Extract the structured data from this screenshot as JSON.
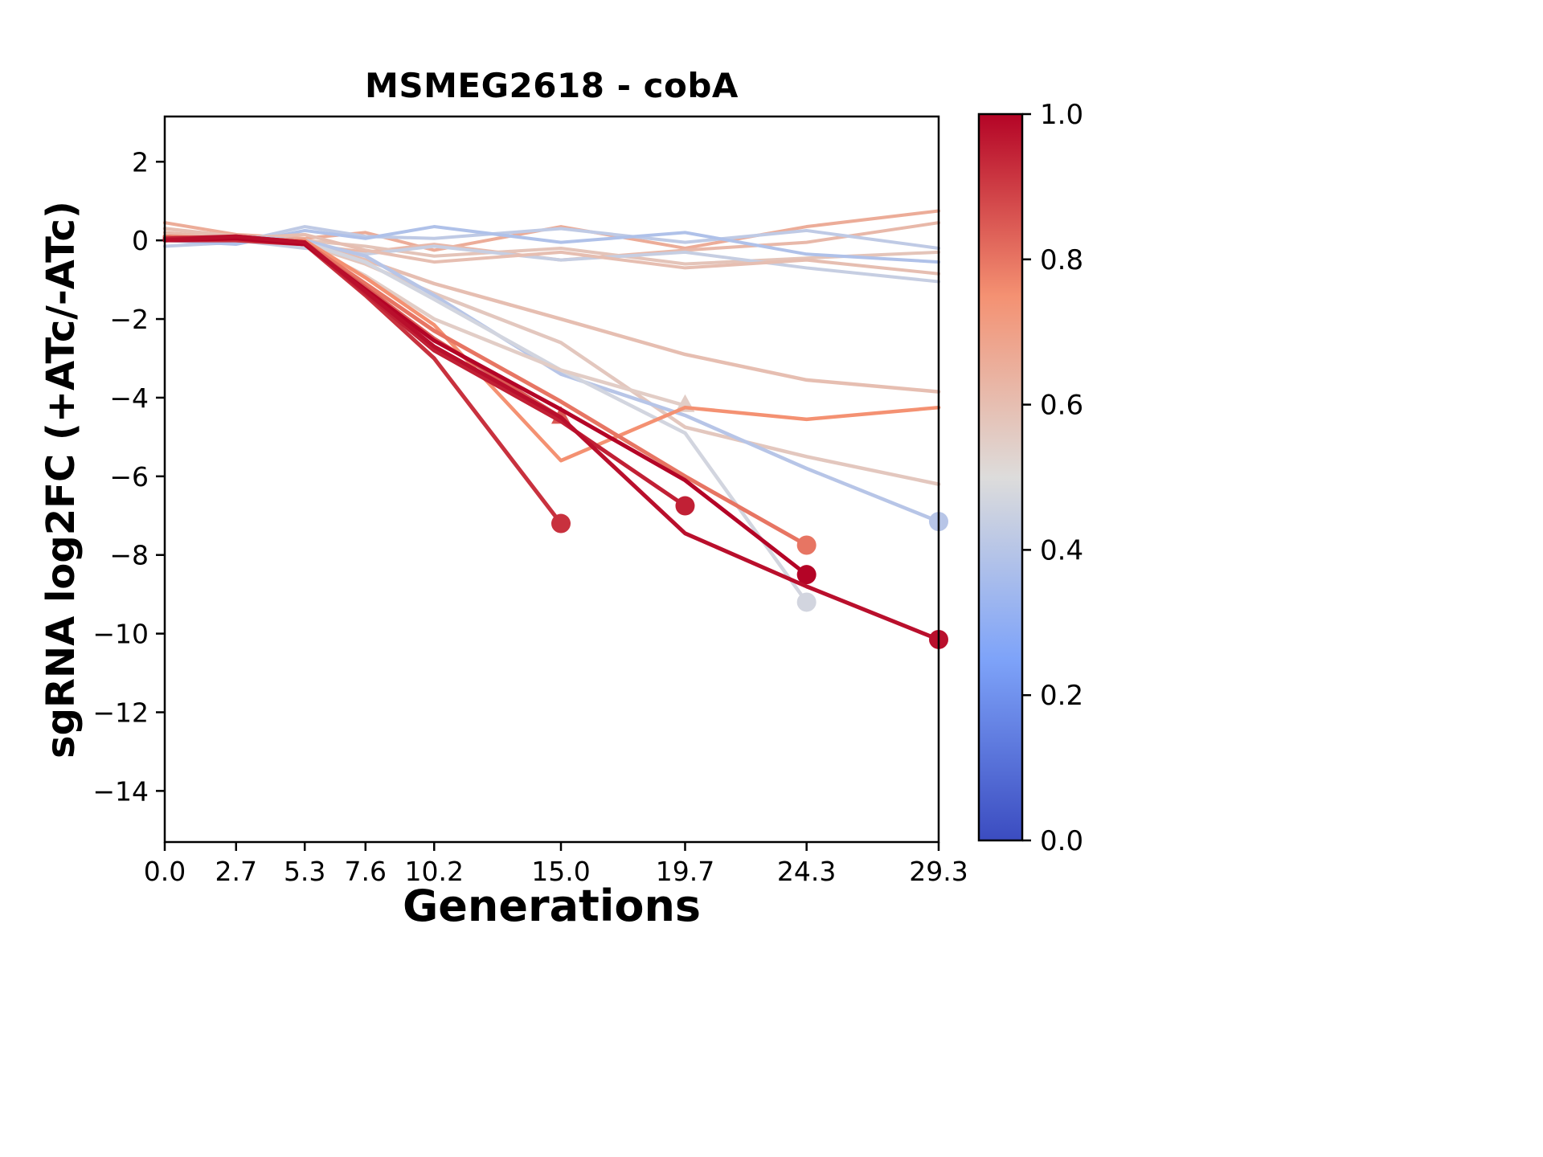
{
  "chart_data": {
    "type": "line",
    "title": "MSMEG2618 - cobA",
    "xlabel": "Generations",
    "ylabel": "sgRNA log2FC (+ATc/-ATc)",
    "x": [
      0.0,
      2.7,
      5.3,
      7.6,
      10.2,
      15.0,
      19.7,
      24.3,
      29.3
    ],
    "xtick_labels": [
      "0.0",
      "2.7",
      "5.3",
      "7.6",
      "10.2",
      "15.0",
      "19.7",
      "24.3",
      "29.3"
    ],
    "ytick_values": [
      2,
      0,
      -2,
      -4,
      -6,
      -8,
      -10,
      -12,
      -14
    ],
    "ytick_labels": [
      "2",
      "0",
      "−2",
      "−4",
      "−6",
      "−8",
      "−10",
      "−12",
      "−14"
    ],
    "xlim": [
      0,
      29.3
    ],
    "ylim": [
      -15.3,
      3.15
    ],
    "grid": false,
    "legend": "none",
    "colormap": {
      "name": "coolwarm",
      "stops": [
        {
          "t": 0.0,
          "rgb": [
            59,
            76,
            192
          ]
        },
        {
          "t": 0.25,
          "rgb": [
            126,
            163,
            249
          ]
        },
        {
          "t": 0.5,
          "rgb": [
            221,
            220,
            219
          ]
        },
        {
          "t": 0.75,
          "rgb": [
            244,
            145,
            114
          ]
        },
        {
          "t": 1.0,
          "rgb": [
            180,
            4,
            38
          ]
        }
      ]
    },
    "colorbar": {
      "range": [
        0.0,
        1.0
      ],
      "tick_values": [
        1.0,
        0.8,
        0.6,
        0.4,
        0.2,
        0.0
      ],
      "tick_labels": [
        "1.0",
        "0.8",
        "0.6",
        "0.4",
        "0.2",
        "0.0"
      ],
      "position": "right"
    },
    "series": [
      {
        "c": 0.66,
        "lw": 4,
        "end_marker": "none",
        "y": [
          0.45,
          0.15,
          0.05,
          0.2,
          -0.25,
          0.35,
          -0.2,
          0.35,
          0.75
        ]
      },
      {
        "c": 0.62,
        "lw": 4,
        "end_marker": "none",
        "y": [
          0.2,
          0.05,
          -0.1,
          -0.3,
          -0.1,
          -0.5,
          -0.25,
          -0.05,
          0.45
        ]
      },
      {
        "c": 0.58,
        "lw": 4,
        "end_marker": "none",
        "y": [
          0.05,
          0.1,
          0.0,
          -0.15,
          -0.4,
          -0.2,
          -0.6,
          -0.45,
          -0.3
        ]
      },
      {
        "c": 0.42,
        "lw": 4,
        "end_marker": "none",
        "y": [
          -0.15,
          -0.05,
          0.35,
          0.1,
          0.05,
          0.3,
          -0.05,
          0.25,
          -0.2
        ]
      },
      {
        "c": 0.38,
        "lw": 4,
        "end_marker": "none",
        "y": [
          0.0,
          -0.1,
          0.25,
          0.05,
          0.35,
          -0.05,
          0.2,
          -0.35,
          -0.55
        ]
      },
      {
        "c": 0.44,
        "lw": 4,
        "end_marker": "none",
        "y": [
          0.1,
          0.0,
          -0.2,
          -0.35,
          -0.15,
          -0.5,
          -0.3,
          -0.7,
          -1.05
        ]
      },
      {
        "c": 0.6,
        "lw": 4,
        "end_marker": "none",
        "y": [
          0.0,
          0.05,
          0.15,
          -0.25,
          -0.55,
          -0.3,
          -0.7,
          -0.5,
          -0.85
        ]
      },
      {
        "c": 0.6,
        "lw": 4.5,
        "end_marker": "none",
        "y": [
          0.3,
          0.1,
          -0.05,
          -0.5,
          -1.1,
          -2.0,
          -2.9,
          -3.55,
          -3.85
        ]
      },
      {
        "c": 0.57,
        "lw": 4.5,
        "end_marker": "none",
        "y": [
          0.1,
          0.0,
          -0.1,
          -0.6,
          -1.35,
          -2.6,
          -4.75,
          -5.5,
          -6.2
        ]
      },
      {
        "c": 0.4,
        "lw": 4.5,
        "end_marker": "circle",
        "y": [
          0.0,
          0.1,
          0.0,
          -0.4,
          -1.4,
          -3.4,
          -4.45,
          -5.8,
          -7.15
        ]
      },
      {
        "c": 0.47,
        "lw": 4.5,
        "end_marker": "circle",
        "y": [
          0.0,
          0.0,
          -0.05,
          -0.55,
          -1.5,
          -3.3,
          -4.9,
          -9.2
        ]
      },
      {
        "c": 0.55,
        "lw": 4.5,
        "end_marker": "triangle",
        "y": [
          0.0,
          0.05,
          -0.1,
          -0.9,
          -2.0,
          -3.3,
          -4.2
        ]
      },
      {
        "c": 0.75,
        "lw": 4.5,
        "end_marker": "none",
        "y": [
          0.1,
          0.05,
          0.0,
          -0.95,
          -2.15,
          -5.6,
          -4.25,
          -4.55,
          -4.25
        ]
      },
      {
        "c": 0.8,
        "lw": 5,
        "end_marker": "circle",
        "y": [
          0.1,
          0.0,
          -0.05,
          -1.1,
          -2.3,
          -4.1,
          -6.0,
          -7.75
        ]
      },
      {
        "c": 0.85,
        "lw": 5,
        "end_marker": "triangle",
        "y": [
          0.0,
          0.05,
          -0.1,
          -1.2,
          -2.5,
          -4.5
        ]
      },
      {
        "c": 0.92,
        "lw": 5,
        "end_marker": "circle",
        "y": [
          0.0,
          0.0,
          -0.1,
          -1.4,
          -3.0,
          -7.2
        ]
      },
      {
        "c": 0.95,
        "lw": 5,
        "end_marker": "circle",
        "y": [
          0.05,
          0.1,
          -0.05,
          -1.35,
          -2.8,
          -4.6,
          -6.75
        ]
      },
      {
        "c": 1.0,
        "lw": 5,
        "end_marker": "circle",
        "y": [
          0.0,
          0.05,
          -0.1,
          -1.25,
          -2.55,
          -4.3,
          -6.1,
          -8.5
        ]
      },
      {
        "c": 0.98,
        "lw": 5,
        "end_marker": "circle",
        "y": [
          0.0,
          0.1,
          -0.05,
          -1.3,
          -2.7,
          -4.5,
          -7.45,
          -8.8,
          -10.15
        ]
      }
    ]
  }
}
